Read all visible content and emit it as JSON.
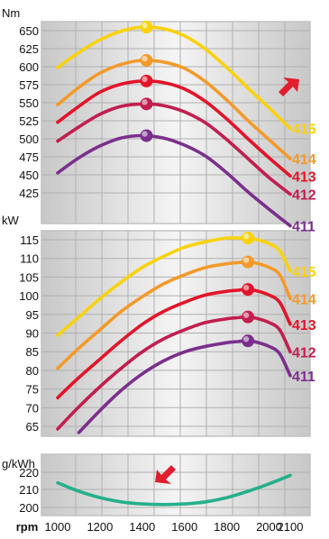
{
  "colors": {
    "frame": "#c2c2c2",
    "grid": "#b0b0b0",
    "panel_light": "#f4f4f4",
    "panel_dark": "#c8c8c8",
    "arrow": "#e21d2e",
    "s415": "#f9d20c",
    "s414": "#f39a2a",
    "s413": "#e3142a",
    "s412": "#c21e4f",
    "s411": "#7b2f8c",
    "bsfc": "#26b08a"
  },
  "chart_data": [
    {
      "type": "line",
      "panel": "torque",
      "ylabel": "Nm",
      "xlim": [
        1000,
        2100
      ],
      "ylim": [
        400,
        655
      ],
      "yticks": [
        425,
        450,
        475,
        500,
        525,
        550,
        575,
        600,
        625,
        650
      ],
      "arrow": "up-right",
      "series": [
        {
          "name": "415",
          "color": "#f9d20c",
          "x": [
            1000,
            1100,
            1200,
            1300,
            1400,
            1500,
            1600,
            1700,
            1800,
            1900,
            2000,
            2100
          ],
          "y": [
            597,
            616,
            632,
            643,
            648,
            646,
            637,
            620,
            597,
            571,
            546,
            520
          ],
          "marker_x": 1420,
          "marker_y": 648
        },
        {
          "name": "414",
          "color": "#f39a2a",
          "x": [
            1000,
            1100,
            1200,
            1300,
            1400,
            1500,
            1600,
            1700,
            1800,
            1900,
            2000,
            2100
          ],
          "y": [
            550,
            572,
            590,
            601,
            606,
            604,
            596,
            579,
            556,
            530,
            506,
            482
          ],
          "marker_x": 1420,
          "marker_y": 606
        },
        {
          "name": "413",
          "color": "#e3142a",
          "x": [
            1000,
            1100,
            1200,
            1300,
            1400,
            1500,
            1600,
            1700,
            1800,
            1900,
            2000,
            2100
          ],
          "y": [
            528,
            548,
            566,
            576,
            580,
            578,
            570,
            554,
            532,
            507,
            483,
            460
          ],
          "marker_x": 1420,
          "marker_y": 580
        },
        {
          "name": "412",
          "color": "#c21e4f",
          "x": [
            1000,
            1100,
            1200,
            1300,
            1400,
            1500,
            1600,
            1700,
            1800,
            1900,
            2000,
            2100
          ],
          "y": [
            504,
            522,
            538,
            548,
            551,
            549,
            541,
            527,
            506,
            482,
            458,
            437
          ],
          "marker_x": 1420,
          "marker_y": 551
        },
        {
          "name": "411",
          "color": "#7b2f8c",
          "x": [
            1000,
            1100,
            1200,
            1300,
            1400,
            1500,
            1600,
            1700,
            1800,
            1900,
            2000,
            2100
          ],
          "y": [
            464,
            483,
            498,
            508,
            511,
            508,
            499,
            485,
            464,
            440,
            418,
            397
          ],
          "marker_x": 1420,
          "marker_y": 511
        }
      ]
    },
    {
      "type": "line",
      "panel": "power",
      "ylabel": "kW",
      "xlim": [
        1000,
        2100
      ],
      "ylim": [
        60,
        116
      ],
      "yticks": [
        65,
        70,
        75,
        80,
        85,
        90,
        95,
        100,
        105,
        110,
        115
      ],
      "series": [
        {
          "name": "415",
          "color": "#f9d20c",
          "x": [
            1000,
            1100,
            1200,
            1300,
            1400,
            1500,
            1600,
            1700,
            1800,
            1850,
            1900,
            1950,
            2000,
            2050,
            2100
          ],
          "y": [
            87.5,
            92.5,
            97.5,
            102,
            106,
            109,
            111.5,
            113,
            114,
            114,
            114,
            113.5,
            112.5,
            110.5,
            105
          ],
          "marker_x": 1900,
          "marker_y": 114
        },
        {
          "name": "414",
          "color": "#f39a2a",
          "x": [
            1000,
            1100,
            1200,
            1300,
            1400,
            1500,
            1600,
            1700,
            1800,
            1850,
            1900,
            1950,
            2000,
            2050,
            2100
          ],
          "y": [
            78.5,
            84,
            89,
            94,
            98,
            101.5,
            104,
            106,
            107,
            107.3,
            107.5,
            107,
            106,
            104,
            97.5
          ],
          "marker_x": 1900,
          "marker_y": 107.5
        },
        {
          "name": "413",
          "color": "#e3142a",
          "x": [
            1000,
            1100,
            1200,
            1300,
            1400,
            1500,
            1600,
            1700,
            1800,
            1850,
            1900,
            1950,
            2000,
            2050,
            2100
          ],
          "y": [
            70.5,
            76,
            81,
            86,
            90.5,
            94,
            96.5,
            98.5,
            99.5,
            99.8,
            100,
            99.5,
            98.5,
            96.5,
            90.5
          ],
          "marker_x": 1900,
          "marker_y": 100
        },
        {
          "name": "412",
          "color": "#c21e4f",
          "x": [
            1000,
            1100,
            1200,
            1300,
            1400,
            1500,
            1600,
            1700,
            1800,
            1850,
            1900,
            1950,
            2000,
            2050,
            2100
          ],
          "y": [
            62,
            68,
            73.5,
            78.5,
            83,
            86.5,
            89,
            91,
            92,
            92.3,
            92.5,
            92,
            91,
            89,
            83
          ],
          "marker_x": 1900,
          "marker_y": 92.5
        },
        {
          "name": "411",
          "color": "#7b2f8c",
          "x": [
            1100,
            1200,
            1300,
            1400,
            1500,
            1600,
            1700,
            1800,
            1850,
            1900,
            1950,
            2000,
            2050,
            2100
          ],
          "y": [
            61,
            67,
            72.5,
            77,
            80.5,
            83,
            84.5,
            85.5,
            85.8,
            86,
            85.5,
            84.5,
            82.5,
            76.5
          ],
          "marker_x": 1900,
          "marker_y": 86
        }
      ]
    },
    {
      "type": "line",
      "panel": "bsfc",
      "ylabel": "g/kWh",
      "xlabel": "rpm",
      "xlim": [
        1000,
        2100
      ],
      "ylim": [
        197,
        226
      ],
      "yticks": [
        200,
        210,
        220
      ],
      "xticks": [
        1000,
        1200,
        1400,
        1600,
        1800,
        2000,
        2100
      ],
      "arrow": "down-left",
      "series": [
        {
          "color": "#26b08a",
          "x": [
            1000,
            1100,
            1200,
            1300,
            1400,
            1500,
            1600,
            1700,
            1800,
            1900,
            2000,
            2100
          ],
          "y": [
            212.5,
            208.5,
            205.5,
            203.5,
            202.5,
            202.2,
            202.5,
            203.5,
            205.5,
            208.5,
            212,
            216
          ]
        }
      ]
    }
  ]
}
